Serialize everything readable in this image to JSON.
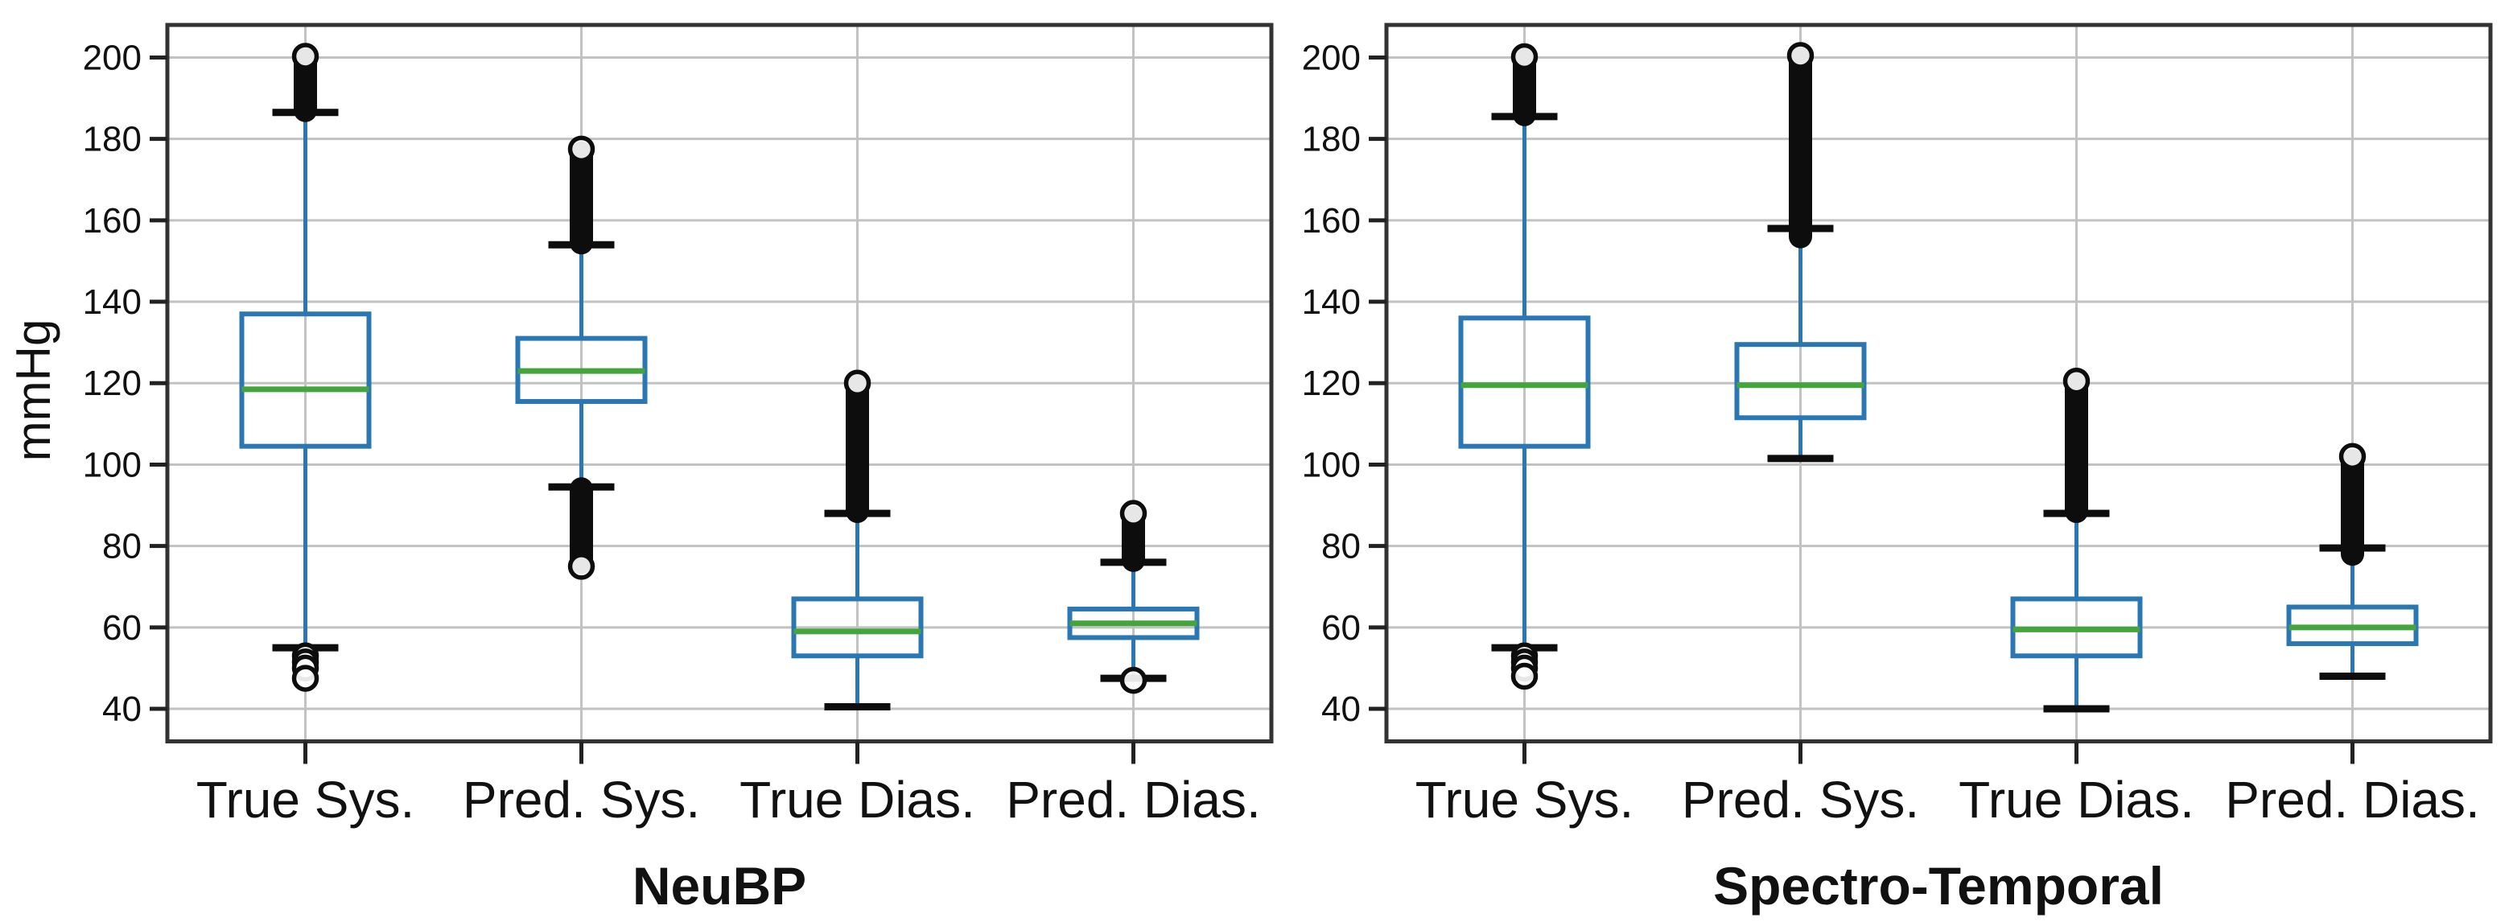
{
  "figure": {
    "background": "#ffffff",
    "colors": {
      "box": "#2a77b4",
      "whisker": "#2a77b4",
      "median": "#43a53c",
      "cap": "#0d0d0d",
      "outlier": "#0d0d0d",
      "grid": "#c2c2c2",
      "spine": "#333333",
      "tick": "#222222",
      "text": "#111111"
    }
  },
  "chart_data": [
    {
      "type": "boxplot",
      "title": "NeuBP",
      "ylabel": "mmHg",
      "ylim": [
        32,
        208
      ],
      "yticks": [
        40,
        60,
        80,
        100,
        120,
        140,
        160,
        180,
        200
      ],
      "grid": true,
      "legend": false,
      "categories": [
        "True Sys.",
        "Pred. Sys.",
        "True Dias.",
        "Pred. Dias."
      ],
      "series": [
        {
          "label": "True Sys.",
          "whislo": 55,
          "q1": 104.5,
          "med": 118.5,
          "q3": 137,
          "whishi": 186.5,
          "outlier_band_high": [
            187,
            200
          ],
          "outlier_circles_high": [
            200.3
          ],
          "outlier_band_low": null,
          "outlier_circles_low": [
            53,
            51.5,
            50,
            47.5
          ]
        },
        {
          "label": "Pred. Sys.",
          "whislo": 94.5,
          "q1": 115.5,
          "med": 123,
          "q3": 131,
          "whishi": 154,
          "outlier_band_high": [
            154.5,
            176.5
          ],
          "outlier_circles_high": [
            177.5
          ],
          "outlier_band_low": [
            76,
            94
          ],
          "outlier_circles_low": [
            75
          ]
        },
        {
          "label": "True Dias.",
          "whislo": 40.5,
          "q1": 53,
          "med": 59,
          "q3": 67,
          "whishi": 88,
          "outlier_band_high": [
            88.5,
            119.5
          ],
          "outlier_circles_high": [
            120
          ],
          "outlier_band_low": null,
          "outlier_circles_low": []
        },
        {
          "label": "Pred. Dias.",
          "whislo": 47.5,
          "q1": 57.5,
          "med": 61,
          "q3": 64.5,
          "whishi": 76,
          "outlier_band_high": [
            76.5,
            87
          ],
          "outlier_circles_high": [
            88
          ],
          "outlier_band_low": null,
          "outlier_circles_low": [
            47
          ]
        }
      ]
    },
    {
      "type": "boxplot",
      "title": "Spectro-Temporal",
      "ylabel": "",
      "ylim": [
        32,
        208
      ],
      "yticks": [
        40,
        60,
        80,
        100,
        120,
        140,
        160,
        180,
        200
      ],
      "grid": true,
      "legend": false,
      "categories": [
        "True Sys.",
        "Pred. Sys.",
        "True Dias.",
        "Pred. Dias."
      ],
      "series": [
        {
          "label": "True Sys.",
          "whislo": 55,
          "q1": 104.5,
          "med": 119.5,
          "q3": 136,
          "whishi": 185.5,
          "outlier_band_high": [
            186,
            199.5
          ],
          "outlier_circles_high": [
            200.2
          ],
          "outlier_band_low": null,
          "outlier_circles_low": [
            53,
            51.5,
            50,
            48
          ]
        },
        {
          "label": "Pred. Sys.",
          "whislo": 101.5,
          "q1": 111.5,
          "med": 119.5,
          "q3": 129.5,
          "whishi": 158,
          "outlier_band_high": [
            156,
            200
          ],
          "outlier_circles_high": [
            200.5
          ],
          "outlier_band_low": null,
          "outlier_circles_low": []
        },
        {
          "label": "True Dias.",
          "whislo": 40,
          "q1": 53,
          "med": 59.5,
          "q3": 67,
          "whishi": 88,
          "outlier_band_high": [
            88.5,
            120
          ],
          "outlier_circles_high": [
            120.5
          ],
          "outlier_band_low": null,
          "outlier_circles_low": []
        },
        {
          "label": "Pred. Dias.",
          "whislo": 48,
          "q1": 56,
          "med": 60,
          "q3": 65,
          "whishi": 79.5,
          "outlier_band_high": [
            78,
            101
          ],
          "outlier_circles_high": [
            102
          ],
          "outlier_band_low": null,
          "outlier_circles_low": []
        }
      ]
    }
  ]
}
